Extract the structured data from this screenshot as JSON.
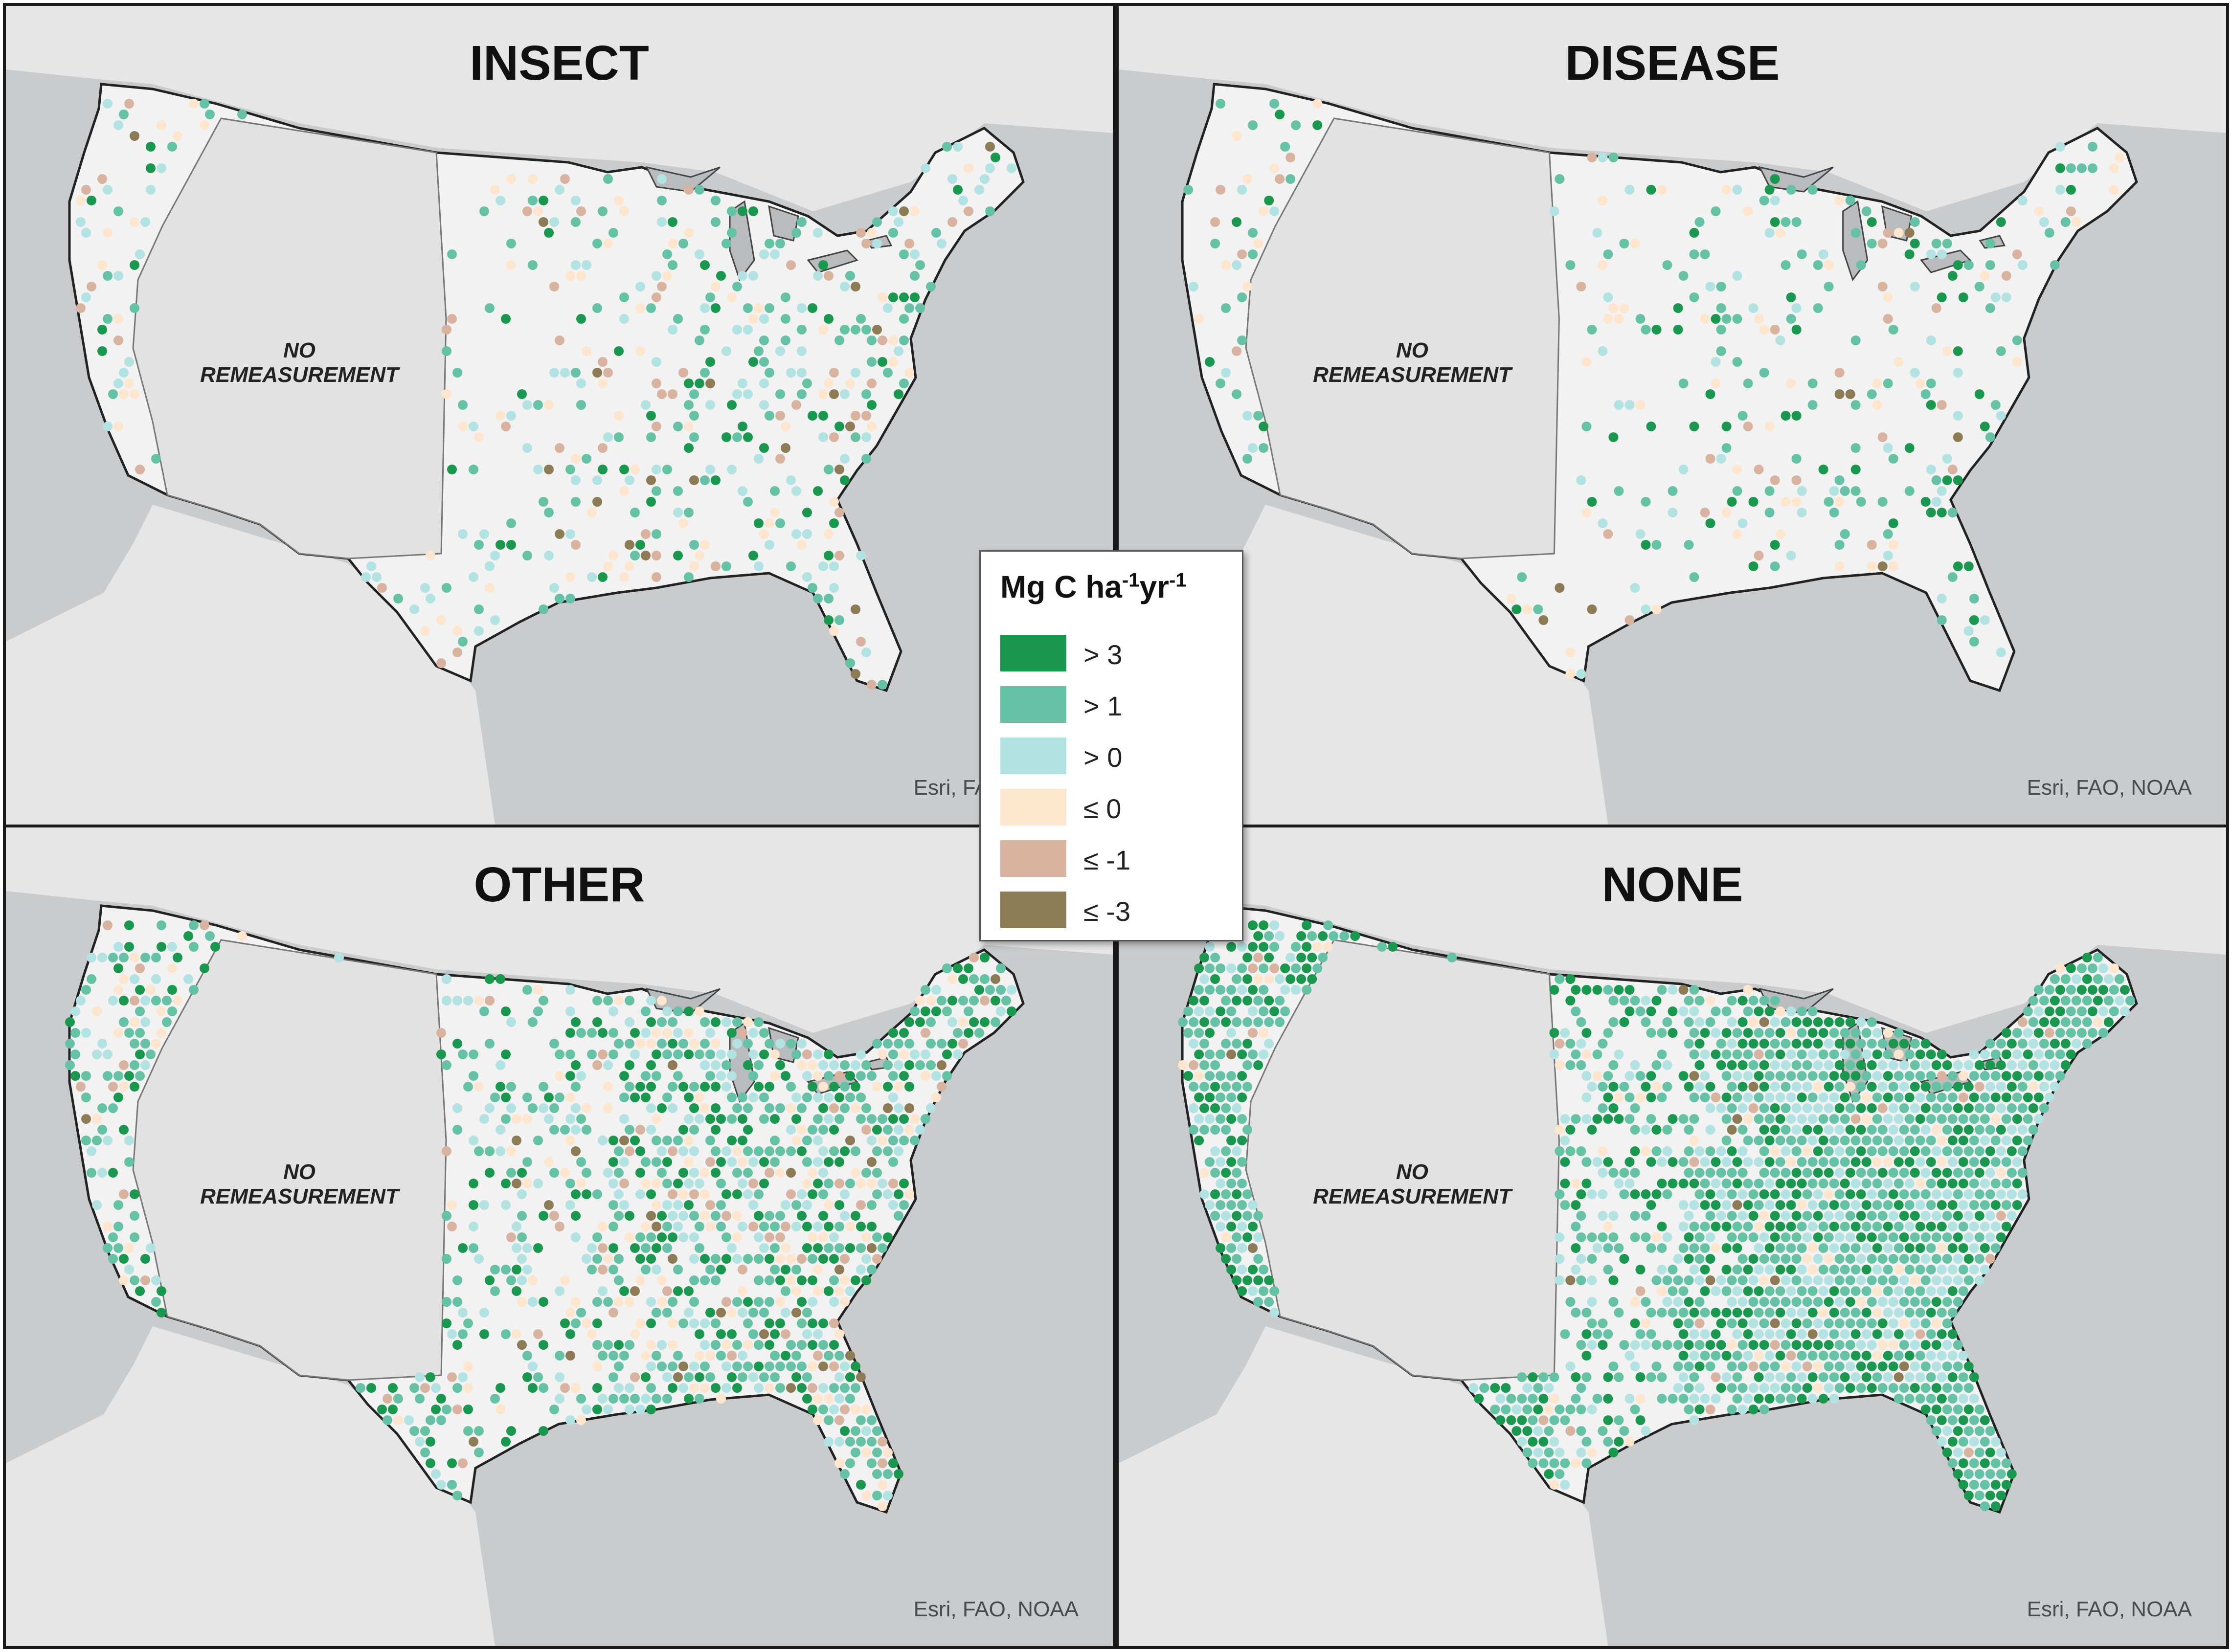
{
  "panels": [
    {
      "title": "INSECT",
      "credit": "Esri, FAO, NOAA",
      "density": 0.22
    },
    {
      "title": "DISEASE",
      "credit": "Esri, FAO, NOAA",
      "density": 0.16
    },
    {
      "title": "OTHER",
      "credit": "Esri, FAO, NOAA",
      "density": 0.55
    },
    {
      "title": "NONE",
      "credit": "Esri, FAO, NOAA",
      "density": 0.85
    }
  ],
  "no_remeasurement": {
    "line1": "NO",
    "line2": "REMEASUREMENT"
  },
  "legend": {
    "title_main": "Mg C ha",
    "title_sup1": "-1",
    "title_mid": "yr",
    "title_sup2": "-1",
    "classes": [
      {
        "label": "> 3",
        "color": "#1a9850"
      },
      {
        "label": "> 1",
        "color": "#66c2a4"
      },
      {
        "label": "> 0",
        "color": "#b2e2e2"
      },
      {
        "label": "≤ 0",
        "color": "#fee6ce"
      },
      {
        "label": "≤ -1",
        "color": "#d8b3a0"
      },
      {
        "label": "≤ -3",
        "color": "#8c7b55"
      }
    ]
  },
  "colors": {
    "land": "#f2f2f2",
    "water": "#c9cbcd",
    "no_data": "#e2e2e2"
  }
}
